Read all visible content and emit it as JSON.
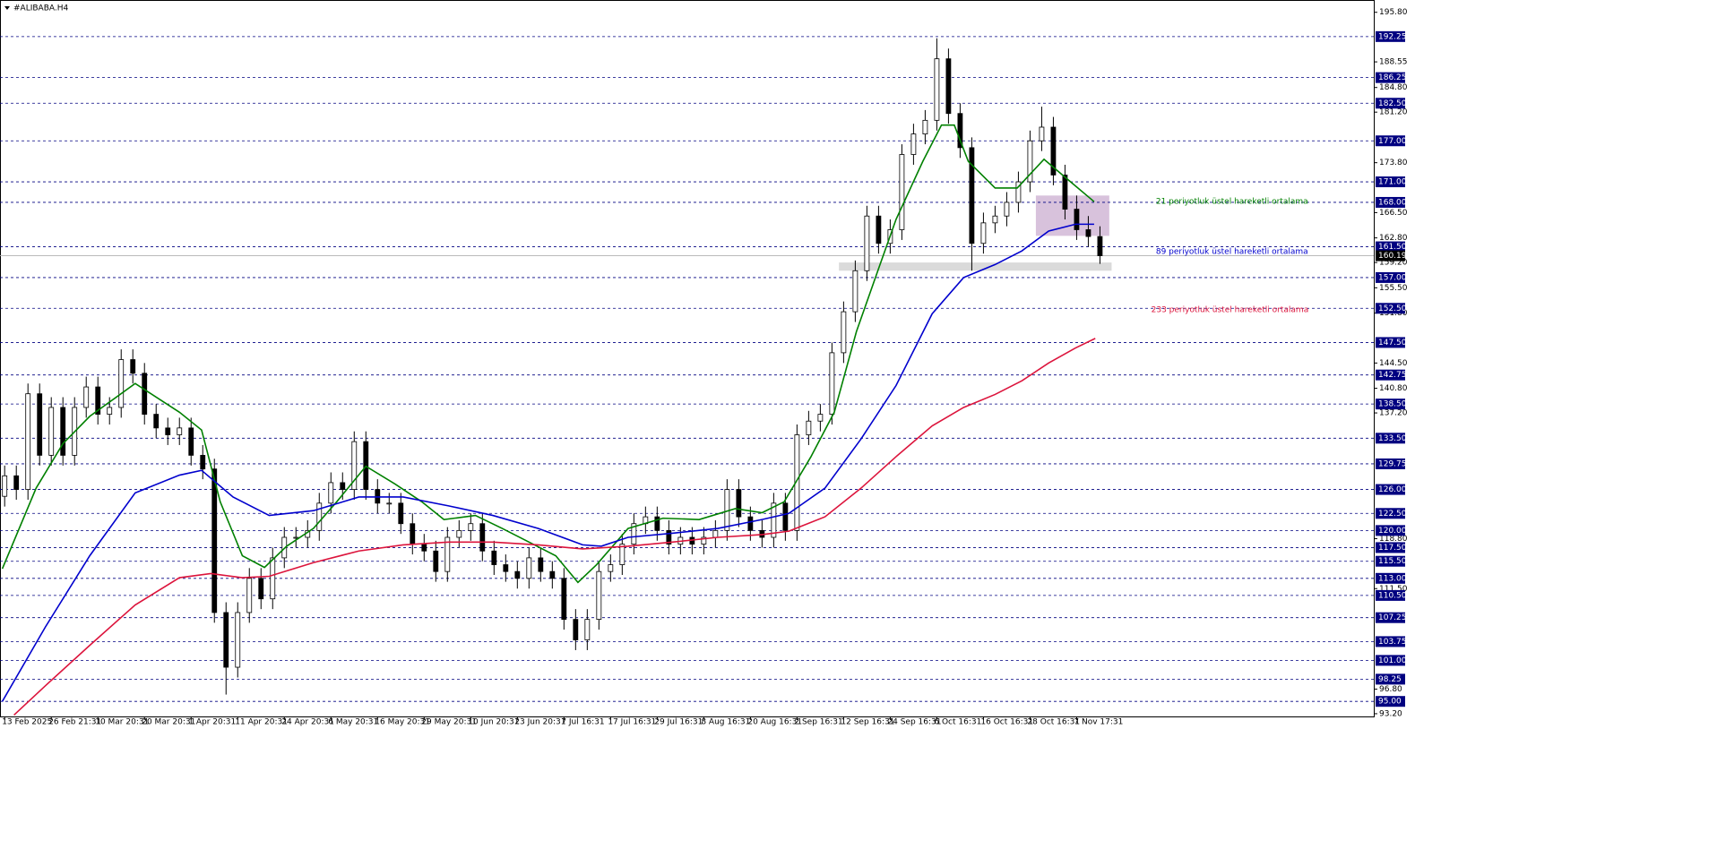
{
  "chart_data": {
    "type": "candlestick",
    "title": "#ALIBABA.H4",
    "xlim": [
      -0.4,
      117.5
    ],
    "ylim": [
      92.8,
      197.6
    ],
    "xticks": [
      {
        "value": 0,
        "label": "13 Feb 2025"
      },
      {
        "value": 4,
        "label": "26 Feb 21:31"
      },
      {
        "value": 8,
        "label": "10 Mar 20:31"
      },
      {
        "value": 12,
        "label": "20 Mar 20:31"
      },
      {
        "value": 16,
        "label": "1 Apr 20:31"
      },
      {
        "value": 20,
        "label": "11 Apr 20:31"
      },
      {
        "value": 24,
        "label": "24 Apr 20:31"
      },
      {
        "value": 28,
        "label": "6 May 20:31"
      },
      {
        "value": 32,
        "label": "16 May 20:31"
      },
      {
        "value": 36,
        "label": "29 May 20:31"
      },
      {
        "value": 40,
        "label": "10 Jun 20:31"
      },
      {
        "value": 44,
        "label": "23 Jun 20:31"
      },
      {
        "value": 48,
        "label": "7 Jul 16:31"
      },
      {
        "value": 52,
        "label": "17 Jul 16:31"
      },
      {
        "value": 56,
        "label": "29 Jul 16:31"
      },
      {
        "value": 60,
        "label": "8 Aug 16:31"
      },
      {
        "value": 64,
        "label": "20 Aug 16:31"
      },
      {
        "value": 68,
        "label": "2 Sep 16:31"
      },
      {
        "value": 72,
        "label": "12 Sep 16:31"
      },
      {
        "value": 76,
        "label": "24 Sep 16:31"
      },
      {
        "value": 80,
        "label": "6 Oct 16:31"
      },
      {
        "value": 84,
        "label": "16 Oct 16:31"
      },
      {
        "value": 88,
        "label": "28 Oct 16:31"
      },
      {
        "value": 92,
        "label": "7 Nov 17:31"
      }
    ],
    "yticks": [
      {
        "value": 195.8,
        "label": "195.80"
      },
      188.55,
      {
        "value": 184.8,
        "label": "184.80"
      },
      {
        "value": 181.2,
        "label": "181.20"
      },
      {
        "value": 173.8,
        "label": "173.80"
      },
      {
        "value": 166.5,
        "label": "166.50"
      },
      {
        "value": 162.8,
        "label": "162.80"
      },
      {
        "value": 159.2,
        "label": "159.20"
      },
      {
        "value": 155.5,
        "label": "155.50"
      },
      {
        "value": 151.8,
        "label": "151.80"
      },
      {
        "value": 144.5,
        "label": "144.50"
      },
      {
        "value": 140.8,
        "label": "140.80"
      },
      {
        "value": 137.2,
        "label": "137.20"
      },
      {
        "value": 118.8,
        "label": "118.80"
      },
      {
        "value": 111.5,
        "label": "111.50"
      },
      {
        "value": 96.8,
        "label": "96.80"
      },
      {
        "value": 93.2,
        "label": "93.20"
      }
    ],
    "levels": [
      192.25,
      186.25,
      {
        "value": 182.5,
        "label": "182.50"
      },
      {
        "value": 177,
        "label": "177.00"
      },
      {
        "value": 171,
        "label": "171.00"
      },
      {
        "value": 168,
        "label": "168.00"
      },
      {
        "value": 161.5,
        "label": "161.50"
      },
      {
        "value": 157,
        "label": "157.00"
      },
      {
        "value": 152.5,
        "label": "152.50"
      },
      {
        "value": 147.5,
        "label": "147.50"
      },
      142.75,
      {
        "value": 138.5,
        "label": "138.50"
      },
      {
        "value": 133.5,
        "label": "133.50"
      },
      129.75,
      {
        "value": 126,
        "label": "126.00"
      },
      {
        "value": 122.5,
        "label": "122.50"
      },
      {
        "value": 120,
        "label": "120.00"
      },
      {
        "value": 117.5,
        "label": "117.50"
      },
      {
        "value": 115.5,
        "label": "115.50"
      },
      {
        "value": 113,
        "label": "113.00"
      },
      {
        "value": 110.5,
        "label": "110.50"
      },
      107.25,
      103.75,
      {
        "value": 101,
        "label": "101.00"
      },
      98.25,
      {
        "value": 95,
        "label": "95.00"
      }
    ],
    "level_color": "#000080",
    "current_price": 160.19,
    "open": [
      125,
      128,
      126,
      140,
      131,
      138,
      131,
      138,
      141,
      137,
      138,
      145,
      143,
      137,
      135,
      134,
      135,
      131,
      129,
      108,
      100,
      108,
      113,
      110,
      116,
      119,
      119,
      120,
      124,
      127,
      126,
      133,
      126,
      124,
      124,
      121,
      118,
      117,
      114,
      119,
      120,
      121,
      117,
      115,
      114,
      113,
      116,
      114,
      113,
      107,
      104,
      107,
      114,
      115,
      118,
      121,
      122,
      120,
      118,
      119,
      118,
      119,
      120,
      126,
      122,
      120,
      119,
      124,
      120,
      134,
      136,
      137,
      146,
      152,
      158,
      166,
      162,
      164,
      175,
      178,
      180,
      189,
      181,
      176,
      162,
      165,
      166,
      168,
      171,
      177,
      179,
      172,
      167,
      164,
      163
    ],
    "high": [
      129.5,
      129.5,
      141.5,
      141.5,
      139.5,
      139.5,
      139.5,
      142.5,
      142.5,
      139.5,
      146.5,
      146.5,
      144.5,
      138.5,
      136.5,
      136.5,
      136.5,
      132.5,
      130.5,
      109.5,
      109.5,
      114.5,
      114.5,
      117.5,
      120.5,
      120.5,
      121.5,
      125.5,
      128.5,
      128.5,
      134.5,
      134.5,
      127.5,
      125.5,
      125.5,
      122.5,
      119.5,
      118.5,
      120.5,
      121.5,
      122.5,
      122.5,
      118.5,
      116.5,
      115.5,
      117.5,
      117.5,
      115.5,
      114.5,
      108.5,
      108.5,
      115.5,
      116.5,
      119.5,
      122.5,
      123.5,
      123.5,
      121.5,
      120.5,
      120.5,
      120.5,
      121.5,
      127.5,
      127.5,
      123.5,
      121.5,
      125.5,
      125.5,
      135.5,
      137.5,
      138.5,
      147.5,
      153.5,
      159.5,
      167.5,
      167.5,
      165.5,
      176.5,
      179.5,
      181.5,
      192,
      190.5,
      182.5,
      177.5,
      166.5,
      167.5,
      169.5,
      172.5,
      178.5,
      182,
      180.5,
      173.5,
      169,
      166,
      164.5
    ],
    "low": [
      123.5,
      124.5,
      124.5,
      129.5,
      129.5,
      129.5,
      129.5,
      136.5,
      135.5,
      135.5,
      136.5,
      141.5,
      135.5,
      133.5,
      132.5,
      132.5,
      129.5,
      127.5,
      106.5,
      96,
      98.5,
      106.5,
      108.5,
      108.5,
      114.5,
      117.5,
      117.5,
      118.5,
      122.5,
      124.5,
      124.5,
      124.5,
      122.5,
      122.5,
      119.5,
      116.5,
      115.5,
      112.5,
      112.5,
      117.5,
      118.5,
      115.5,
      113.5,
      112.5,
      111.5,
      111.5,
      112.5,
      111.5,
      105.5,
      102.5,
      102.5,
      105.5,
      112.5,
      113.5,
      116.5,
      119.5,
      118.5,
      116.5,
      116.5,
      116.5,
      116.5,
      117.5,
      118.5,
      120.5,
      118.5,
      117.5,
      117.5,
      118.5,
      118.5,
      132.5,
      134.5,
      135.5,
      144.5,
      150.5,
      156.5,
      160.5,
      160.5,
      162.5,
      173.5,
      176.5,
      178.5,
      179.5,
      174.5,
      158,
      160.5,
      163.5,
      164.5,
      166.5,
      169.5,
      175.5,
      170.5,
      165.5,
      162.5,
      161.5,
      159
    ],
    "close": [
      128,
      126,
      140,
      131,
      138,
      131,
      138,
      141,
      137,
      138,
      145,
      143,
      137,
      135,
      134,
      135,
      131,
      129,
      108,
      100,
      108,
      113,
      110,
      116,
      119,
      119,
      120,
      124,
      127,
      126,
      133,
      126,
      124,
      124,
      121,
      118,
      117,
      114,
      119,
      120,
      121,
      117,
      115,
      114,
      113,
      116,
      114,
      113,
      107,
      104,
      107,
      114,
      115,
      118,
      121,
      122,
      120,
      118,
      119,
      118,
      119,
      120,
      126,
      122,
      120,
      119,
      124,
      120,
      134,
      136,
      137,
      146,
      152,
      158,
      166,
      162,
      164,
      175,
      178,
      180,
      189,
      181,
      176,
      162,
      165,
      166,
      168,
      171,
      177,
      179,
      172,
      167,
      164,
      163,
      160.19
    ],
    "series": [
      {
        "color": "#008000",
        "x": [
          -0.2,
          2.7,
          5,
          7.3,
          11.2,
          15,
          16.9,
          18.5,
          20.4,
          22.3,
          24.2,
          26.5,
          28.5,
          31,
          33.5,
          35.8,
          37.7,
          40.4,
          42.7,
          45,
          47.3,
          49.2,
          50.8,
          53.5,
          56.5,
          59.6,
          62.7,
          65,
          66.9,
          69.2,
          71.2,
          73.1,
          75,
          76.5,
          78.8,
          80.4,
          81.5,
          82.7,
          85,
          86.9,
          89.2,
          91.2,
          93.5
        ],
        "values": [
          114.4,
          126.2,
          132.7,
          136.7,
          141.5,
          137.3,
          134.7,
          124.2,
          116.3,
          114.6,
          117.7,
          120.3,
          124.2,
          129.4,
          126.8,
          124.2,
          121.6,
          122.2,
          120.3,
          118.3,
          116.3,
          112.4,
          115,
          120.3,
          121.8,
          121.6,
          123.2,
          122.6,
          124.2,
          130.8,
          137.3,
          149.1,
          158.3,
          165.5,
          174,
          179.3,
          179.3,
          174,
          170.1,
          170.1,
          174.3,
          171.4,
          168.1
        ]
      },
      {
        "color": "#0000cd",
        "x": [
          -0.2,
          3.5,
          7.3,
          11.2,
          15,
          16.9,
          19.6,
          22.7,
          26.5,
          30.4,
          34.2,
          38.1,
          41.9,
          45.8,
          49.6,
          51.2,
          53.5,
          57.3,
          61.2,
          65,
          67.3,
          70.4,
          73.5,
          76.5,
          79.6,
          82.3,
          85,
          87.3,
          89.6,
          91.9,
          93.5
        ],
        "values": [
          95,
          105.9,
          116.3,
          125.5,
          128.1,
          128.8,
          124.9,
          122.2,
          122.9,
          124.9,
          124.9,
          123.6,
          122.2,
          120.3,
          117.9,
          117.7,
          119,
          119.6,
          120.3,
          121.6,
          122.5,
          126.2,
          133.4,
          141.2,
          151.7,
          157,
          158.9,
          160.9,
          163.8,
          164.8,
          164.8
        ]
      },
      {
        "color": "#dc143c",
        "x": [
          0.8,
          3.5,
          7.3,
          11.2,
          15,
          17.7,
          20.4,
          22.7,
          26.5,
          30.4,
          34.2,
          38.1,
          41.9,
          45.8,
          49.6,
          53.5,
          57.3,
          61.2,
          65,
          67.3,
          70.4,
          73.5,
          76.5,
          79.6,
          82.3,
          85,
          87.3,
          89.6,
          91.9,
          93.6
        ],
        "values": [
          93,
          97.3,
          103.2,
          109.1,
          113.1,
          113.7,
          113.1,
          113.3,
          115.3,
          117,
          117.9,
          118.3,
          118.3,
          117.9,
          117.3,
          117.7,
          118.3,
          119,
          119.4,
          119.9,
          122,
          126.2,
          130.8,
          135.3,
          138,
          139.9,
          141.9,
          144.5,
          146.7,
          148.1
        ]
      }
    ],
    "zones": [
      {
        "x": [
          88.5,
          94.8
        ],
        "y": [
          163.1,
          169.0
        ],
        "color": "#d8c2dc"
      },
      {
        "x": [
          71.6,
          95
        ],
        "y": [
          158.0,
          159.2
        ],
        "color": "#dadada"
      }
    ],
    "annotations": [
      {
        "text": "21 periyotluk üstel hareketli ortalama",
        "color": "#008000",
        "x": 98.8,
        "y": 168.1
      },
      {
        "text": "89 periyotluk üstel hareketli ortalama",
        "color": "#0000cd",
        "x": 98.8,
        "y": 160.8
      },
      {
        "text": "233 periyotluk üstel hareketli ortalama",
        "color": "#dc143c",
        "x": 98.4,
        "y": 152.3
      }
    ]
  }
}
